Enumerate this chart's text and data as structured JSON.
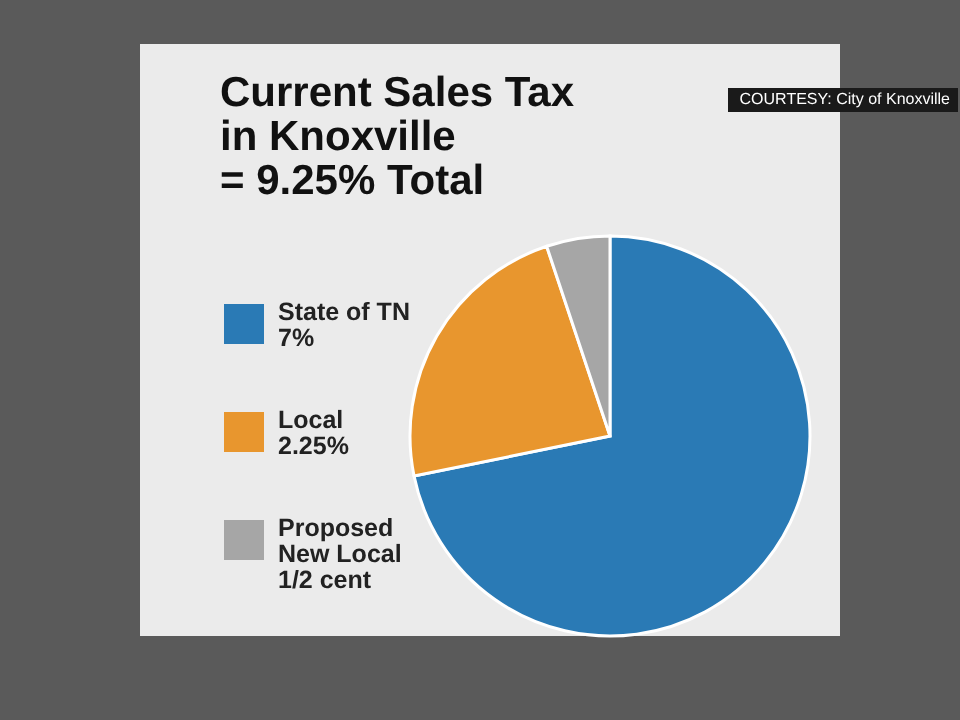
{
  "chart_data": {
    "type": "pie",
    "title": "Current Sales Tax\nin Knoxville\n= 9.25% Total",
    "categories": [
      "State of TN\n7%",
      "Local\n2.25%",
      "Proposed\nNew Local\n1/2 cent"
    ],
    "values": [
      7,
      2.25,
      0.5
    ],
    "colors": [
      "#2a7ab5",
      "#e8962e",
      "#a6a6a6"
    ],
    "legend": "left",
    "annotations": [
      "COURTESY: City of Knoxville"
    ]
  }
}
